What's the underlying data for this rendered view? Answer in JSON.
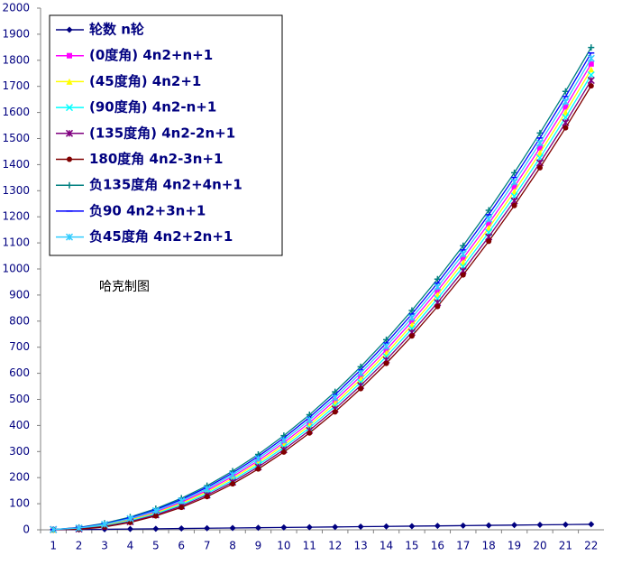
{
  "chart_data": {
    "type": "line",
    "annotation": "哈克制图",
    "categories": [
      "1",
      "2",
      "3",
      "4",
      "5",
      "6",
      "7",
      "8",
      "9",
      "10",
      "11",
      "12",
      "13",
      "14",
      "15",
      "16",
      "17",
      "18",
      "19",
      "20",
      "21",
      "22"
    ],
    "ylim": [
      0,
      2000
    ],
    "yticks": [
      0,
      100,
      200,
      300,
      400,
      500,
      600,
      700,
      800,
      900,
      1000,
      1100,
      1200,
      1300,
      1400,
      1500,
      1600,
      1700,
      1800,
      1900,
      2000
    ],
    "legend": "top-left",
    "series": [
      {
        "name": "轮数 n轮",
        "color": "#000080",
        "marker": "diamond",
        "values": [
          0,
          1,
          2,
          3,
          4,
          5,
          6,
          7,
          8,
          9,
          10,
          11,
          12,
          13,
          14,
          15,
          16,
          17,
          18,
          19,
          20,
          21
        ]
      },
      {
        "name": "(0度角) 4n2+n+1",
        "color": "#ff00ff",
        "marker": "square",
        "values": [
          1,
          6,
          19,
          40,
          69,
          106,
          151,
          204,
          265,
          334,
          411,
          496,
          589,
          690,
          799,
          916,
          1041,
          1174,
          1315,
          1464,
          1621,
          1786
        ]
      },
      {
        "name": "(45度角) 4n2+1",
        "color": "#ffff00",
        "marker": "triangle",
        "values": [
          1,
          5,
          17,
          37,
          65,
          101,
          145,
          197,
          257,
          325,
          401,
          485,
          577,
          677,
          785,
          901,
          1025,
          1157,
          1297,
          1445,
          1601,
          1765
        ]
      },
      {
        "name": "(90度角) 4n2-n+1",
        "color": "#00ffff",
        "marker": "x",
        "values": [
          1,
          4,
          15,
          34,
          61,
          96,
          139,
          190,
          249,
          316,
          391,
          474,
          565,
          664,
          771,
          886,
          1009,
          1140,
          1279,
          1426,
          1581,
          1744
        ]
      },
      {
        "name": "(135度角) 4n2-2n+1",
        "color": "#800080",
        "marker": "star",
        "values": [
          1,
          3,
          13,
          31,
          57,
          91,
          133,
          183,
          241,
          307,
          381,
          463,
          553,
          651,
          757,
          871,
          993,
          1123,
          1261,
          1407,
          1561,
          1723
        ]
      },
      {
        "name": "180度角 4n2-3n+1",
        "color": "#800000",
        "marker": "circle",
        "values": [
          1,
          2,
          11,
          28,
          53,
          86,
          127,
          176,
          233,
          298,
          371,
          452,
          541,
          638,
          743,
          856,
          977,
          1106,
          1243,
          1388,
          1541,
          1702
        ]
      },
      {
        "name": "负135度角 4n2+4n+1",
        "color": "#008080",
        "marker": "plus",
        "values": [
          1,
          9,
          25,
          49,
          81,
          121,
          169,
          225,
          289,
          361,
          441,
          529,
          625,
          729,
          841,
          961,
          1089,
          1225,
          1369,
          1521,
          1681,
          1849
        ]
      },
      {
        "name": "负90 4n2+3n+1",
        "color": "#0000ff",
        "marker": "dash",
        "values": [
          1,
          8,
          23,
          46,
          77,
          116,
          163,
          218,
          281,
          352,
          431,
          518,
          613,
          716,
          827,
          946,
          1073,
          1208,
          1351,
          1502,
          1661,
          1828
        ]
      },
      {
        "name": "负45度角 4n2+2n+1",
        "color": "#33ccff",
        "marker": "star",
        "values": [
          1,
          7,
          21,
          43,
          73,
          111,
          157,
          211,
          273,
          343,
          421,
          507,
          601,
          703,
          813,
          931,
          1057,
          1191,
          1333,
          1483,
          1641,
          1807
        ]
      }
    ]
  }
}
